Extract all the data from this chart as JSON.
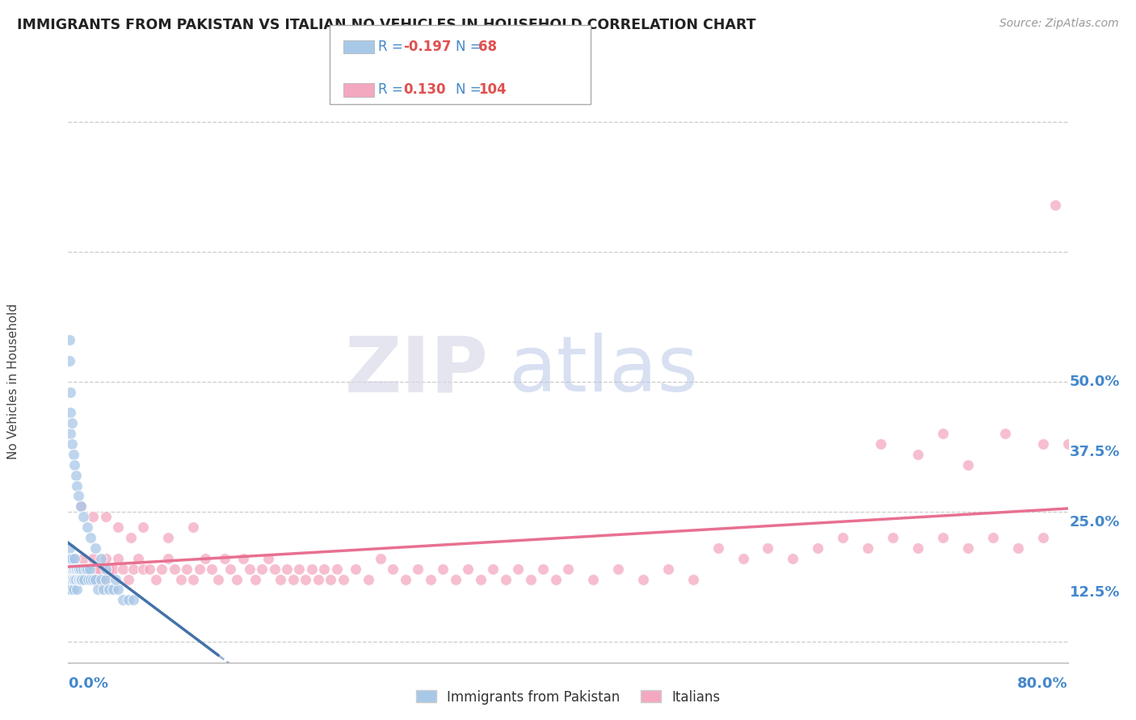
{
  "title": "IMMIGRANTS FROM PAKISTAN VS ITALIAN NO VEHICLES IN HOUSEHOLD CORRELATION CHART",
  "source_text": "Source: ZipAtlas.com",
  "ylabel": "No Vehicles in Household",
  "y_ticks": [
    0.0,
    0.125,
    0.25,
    0.375,
    0.5
  ],
  "y_tick_labels": [
    "",
    "12.5%",
    "25.0%",
    "37.5%",
    "50.0%"
  ],
  "x_min": 0.0,
  "x_max": 0.8,
  "y_min": -0.02,
  "y_max": 0.52,
  "color_blue": "#a8c8e8",
  "color_pink": "#f4a8c0",
  "color_blue_line": "#4472a8",
  "color_pink_line": "#e87090",
  "color_axis_label": "#4488cc",
  "watermark_zip": "ZIP",
  "watermark_atlas": "atlas",
  "blue_scatter_x": [
    0.001,
    0.001,
    0.001,
    0.001,
    0.001,
    0.002,
    0.002,
    0.002,
    0.002,
    0.003,
    0.003,
    0.003,
    0.004,
    0.004,
    0.004,
    0.005,
    0.005,
    0.005,
    0.006,
    0.006,
    0.007,
    0.007,
    0.008,
    0.008,
    0.009,
    0.009,
    0.01,
    0.01,
    0.011,
    0.012,
    0.013,
    0.014,
    0.015,
    0.016,
    0.017,
    0.018,
    0.02,
    0.022,
    0.024,
    0.026,
    0.028,
    0.03,
    0.033,
    0.036,
    0.04,
    0.044,
    0.048,
    0.052,
    0.001,
    0.001,
    0.002,
    0.002,
    0.002,
    0.003,
    0.003,
    0.004,
    0.005,
    0.006,
    0.007,
    0.008,
    0.01,
    0.012,
    0.015,
    0.018,
    0.022,
    0.026,
    0.03,
    0.038
  ],
  "blue_scatter_y": [
    0.07,
    0.08,
    0.09,
    0.06,
    0.05,
    0.07,
    0.08,
    0.06,
    0.05,
    0.07,
    0.08,
    0.06,
    0.07,
    0.06,
    0.05,
    0.08,
    0.07,
    0.06,
    0.07,
    0.06,
    0.07,
    0.05,
    0.07,
    0.06,
    0.07,
    0.06,
    0.07,
    0.06,
    0.06,
    0.07,
    0.06,
    0.07,
    0.07,
    0.06,
    0.07,
    0.06,
    0.06,
    0.06,
    0.05,
    0.06,
    0.05,
    0.06,
    0.05,
    0.05,
    0.05,
    0.04,
    0.04,
    0.04,
    0.29,
    0.27,
    0.24,
    0.22,
    0.2,
    0.21,
    0.19,
    0.18,
    0.17,
    0.16,
    0.15,
    0.14,
    0.13,
    0.12,
    0.11,
    0.1,
    0.09,
    0.08,
    0.07,
    0.06
  ],
  "pink_scatter_x": [
    0.005,
    0.008,
    0.01,
    0.012,
    0.015,
    0.018,
    0.02,
    0.022,
    0.025,
    0.028,
    0.03,
    0.033,
    0.036,
    0.04,
    0.044,
    0.048,
    0.052,
    0.056,
    0.06,
    0.065,
    0.07,
    0.075,
    0.08,
    0.085,
    0.09,
    0.095,
    0.1,
    0.105,
    0.11,
    0.115,
    0.12,
    0.125,
    0.13,
    0.135,
    0.14,
    0.145,
    0.15,
    0.155,
    0.16,
    0.165,
    0.17,
    0.175,
    0.18,
    0.185,
    0.19,
    0.195,
    0.2,
    0.205,
    0.21,
    0.215,
    0.22,
    0.23,
    0.24,
    0.25,
    0.26,
    0.27,
    0.28,
    0.29,
    0.3,
    0.31,
    0.32,
    0.33,
    0.34,
    0.35,
    0.36,
    0.37,
    0.38,
    0.39,
    0.4,
    0.42,
    0.44,
    0.46,
    0.48,
    0.5,
    0.52,
    0.54,
    0.56,
    0.58,
    0.6,
    0.62,
    0.64,
    0.66,
    0.68,
    0.7,
    0.72,
    0.74,
    0.76,
    0.78,
    0.01,
    0.02,
    0.03,
    0.04,
    0.05,
    0.06,
    0.08,
    0.1,
    0.65,
    0.68,
    0.7,
    0.72,
    0.75,
    0.78,
    0.79,
    0.8
  ],
  "pink_scatter_y": [
    0.08,
    0.07,
    0.06,
    0.08,
    0.07,
    0.06,
    0.08,
    0.07,
    0.07,
    0.06,
    0.08,
    0.07,
    0.07,
    0.08,
    0.07,
    0.06,
    0.07,
    0.08,
    0.07,
    0.07,
    0.06,
    0.07,
    0.08,
    0.07,
    0.06,
    0.07,
    0.06,
    0.07,
    0.08,
    0.07,
    0.06,
    0.08,
    0.07,
    0.06,
    0.08,
    0.07,
    0.06,
    0.07,
    0.08,
    0.07,
    0.06,
    0.07,
    0.06,
    0.07,
    0.06,
    0.07,
    0.06,
    0.07,
    0.06,
    0.07,
    0.06,
    0.07,
    0.06,
    0.08,
    0.07,
    0.06,
    0.07,
    0.06,
    0.07,
    0.06,
    0.07,
    0.06,
    0.07,
    0.06,
    0.07,
    0.06,
    0.07,
    0.06,
    0.07,
    0.06,
    0.07,
    0.06,
    0.07,
    0.06,
    0.09,
    0.08,
    0.09,
    0.08,
    0.09,
    0.1,
    0.09,
    0.1,
    0.09,
    0.1,
    0.09,
    0.1,
    0.09,
    0.1,
    0.13,
    0.12,
    0.12,
    0.11,
    0.1,
    0.11,
    0.1,
    0.11,
    0.19,
    0.18,
    0.2,
    0.17,
    0.2,
    0.19,
    0.42,
    0.19
  ],
  "blue_line_x0": 0.0,
  "blue_line_x1": 0.12,
  "blue_line_dashed_x1": 0.45,
  "blue_line_y_at_0": 0.095,
  "blue_line_slope": -0.9,
  "pink_line_x0": 0.0,
  "pink_line_x1": 0.8,
  "pink_line_y_at_0": 0.072,
  "pink_line_slope": 0.07
}
